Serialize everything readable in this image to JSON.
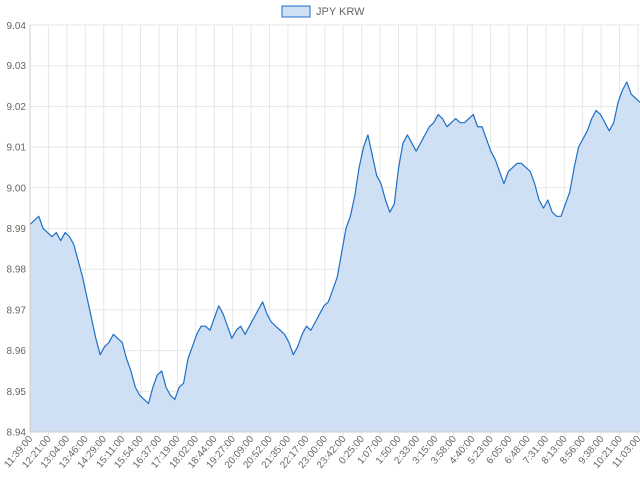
{
  "chart_data": {
    "type": "area",
    "legend": {
      "position": "top-center"
    },
    "grid": true,
    "colors": {
      "line": "#1f6fc5",
      "fill": "#cfe0f5",
      "grid": "#e6e6e6",
      "axis": "#cccccc",
      "legend_box_fill": "#cfe0f5",
      "legend_box_stroke": "#1f6fc5"
    },
    "ylim": [
      8.94,
      9.04
    ],
    "yticks": [
      "9.04",
      "9.03",
      "9.02",
      "9.01",
      "9.00",
      "8.99",
      "8.98",
      "8.97",
      "8.96",
      "8.95",
      "8.94"
    ],
    "xticks": [
      "11:39:00",
      "12:21:00",
      "13:04:00",
      "13:46:00",
      "14:29:00",
      "15:11:00",
      "15:54:00",
      "16:37:00",
      "17:19:00",
      "18:02:00",
      "18:44:00",
      "19:27:00",
      "20:09:00",
      "20:52:00",
      "21:35:00",
      "22:17:00",
      "23:00:00",
      "23:42:00",
      "0:25:00",
      "1:07:00",
      "1:50:00",
      "2:33:00",
      "3:15:00",
      "3:58:00",
      "4:40:00",
      "5:23:00",
      "6:05:00",
      "6:48:00",
      "7:31:00",
      "8:13:00",
      "8:56:00",
      "9:38:00",
      "10:21:00",
      "11:03:00"
    ],
    "series": [
      {
        "name": "JPY KRW",
        "values": [
          8.991,
          8.992,
          8.993,
          8.99,
          8.989,
          8.988,
          8.989,
          8.987,
          8.989,
          8.988,
          8.986,
          8.982,
          8.978,
          8.973,
          8.968,
          8.963,
          8.959,
          8.961,
          8.962,
          8.964,
          8.963,
          8.962,
          8.958,
          8.955,
          8.951,
          8.949,
          8.948,
          8.947,
          8.951,
          8.954,
          8.955,
          8.951,
          8.949,
          8.948,
          8.951,
          8.952,
          8.958,
          8.961,
          8.964,
          8.966,
          8.966,
          8.965,
          8.968,
          8.971,
          8.969,
          8.966,
          8.963,
          8.965,
          8.966,
          8.964,
          8.966,
          8.968,
          8.97,
          8.972,
          8.969,
          8.967,
          8.966,
          8.965,
          8.964,
          8.962,
          8.959,
          8.961,
          8.964,
          8.966,
          8.965,
          8.967,
          8.969,
          8.971,
          8.972,
          8.975,
          8.978,
          8.984,
          8.99,
          8.993,
          8.998,
          9.005,
          9.01,
          9.013,
          9.008,
          9.003,
          9.001,
          8.997,
          8.994,
          8.996,
          9.005,
          9.011,
          9.013,
          9.011,
          9.009,
          9.011,
          9.013,
          9.015,
          9.016,
          9.018,
          9.017,
          9.015,
          9.016,
          9.017,
          9.016,
          9.016,
          9.017,
          9.018,
          9.015,
          9.015,
          9.012,
          9.009,
          9.007,
          9.004,
          9.001,
          9.004,
          9.005,
          9.006,
          9.006,
          9.005,
          9.004,
          9.001,
          8.997,
          8.995,
          8.997,
          8.994,
          8.993,
          8.993,
          8.996,
          8.999,
          9.005,
          9.01,
          9.012,
          9.014,
          9.017,
          9.019,
          9.018,
          9.016,
          9.014,
          9.016,
          9.021,
          9.024,
          9.026,
          9.023,
          9.022,
          9.021
        ]
      }
    ]
  }
}
